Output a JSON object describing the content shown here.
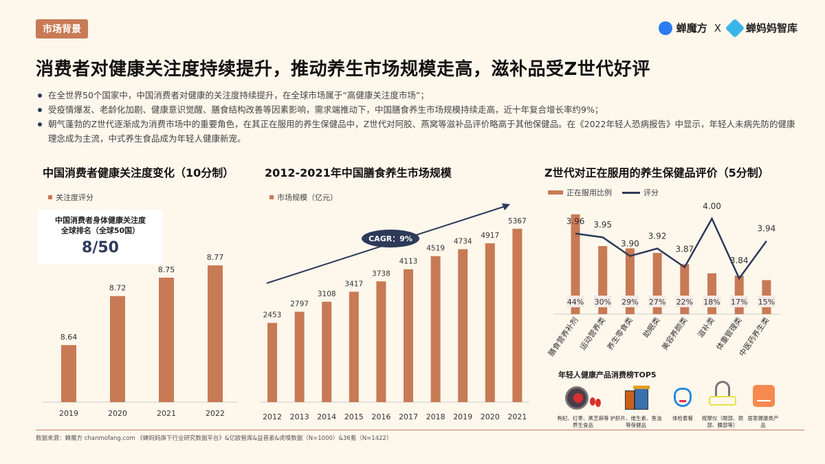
{
  "tag": "市场背景",
  "logos": {
    "left": "蝉魔方",
    "x": "X",
    "right": "蝉妈妈智库"
  },
  "title": "消费者对健康关注度持续提升，推动养生市场规模走高，滋补品受Z世代好评",
  "bullets": [
    "在全世界50个国家中，中国消费者对健康的关注度持续提升，在全球市场属于“高健康关注度市场”；",
    "受疫情爆发、老龄化加剧、健康意识觉醒、膳食结构改善等因素影响，需求端推动下，中国膳食养生市场规模持续走高，近十年复合增长率约9%；",
    "朝气蓬勃的Z世代逐渐成为消费市场中的重要角色，在其正在服用的养生保健品中，Z世代对阿胶、燕窝等滋补品评价略高于其他保健品。在《2022年轻人恐病报告》中显示，年轻人未病先防的健康理念成为主流，中式养生食品成为年轻人健康新宠。"
  ],
  "rank_box": {
    "line1": "中国消费者身体健康关注度",
    "line2": "全球排名（全球50国）",
    "value": "8/50"
  },
  "chart_data": [
    {
      "type": "bar",
      "title": "中国消费者健康关注度变化（10分制）",
      "categories": [
        "2019",
        "2020",
        "2021",
        "2022"
      ],
      "series": [
        {
          "name": "关注度评分",
          "values": [
            8.64,
            8.72,
            8.75,
            8.77
          ]
        }
      ],
      "grid": false,
      "legend": "top-left"
    },
    {
      "type": "bar",
      "title": "2012-2021年中国膳食养生市场规模",
      "categories": [
        "2012",
        "2013",
        "2014",
        "2015",
        "2016",
        "2017",
        "2018",
        "2019",
        "2020",
        "2021"
      ],
      "series": [
        {
          "name": "市场规模（亿元）",
          "values": [
            2453,
            2797,
            3108,
            3417,
            3738,
            4113,
            4519,
            4734,
            4917,
            5367
          ]
        }
      ],
      "annotation": "CAGR：9%",
      "grid": false,
      "legend": "top-left"
    },
    {
      "type": "bar+line",
      "title": "Z世代对正在服用的养生保健品评价（5分制）",
      "categories": [
        "膳食营养补剂",
        "运动营养类",
        "养生零食类",
        "助眠类",
        "美容养颜类",
        "滋补类",
        "体重管理类",
        "中医药养生类"
      ],
      "series": [
        {
          "name": "正在服用比例",
          "unit": "%",
          "values": [
            44,
            30,
            29,
            27,
            22,
            18,
            17,
            15
          ]
        },
        {
          "name": "评分",
          "values": [
            3.96,
            3.95,
            3.9,
            3.92,
            3.87,
            4.0,
            3.84,
            3.94
          ]
        }
      ],
      "grid": false,
      "legend": "top-left"
    }
  ],
  "top5": {
    "title": "年轻人健康产品消费榜TOP5",
    "items": [
      {
        "label": "枸杞、红枣、黑芝麻等养生食品",
        "icon": "goji-bowl-icon"
      },
      {
        "label": "护肝片、维生素、鱼油等保健品",
        "icon": "pill-box-icon"
      },
      {
        "label": "体检套餐",
        "icon": "stethoscope-icon"
      },
      {
        "label": "按摩仪（眼部、颈部、腰部等）",
        "icon": "eye-massager-icon"
      },
      {
        "label": "居家健康类产品",
        "icon": "test-kit-icon"
      }
    ]
  },
  "source": "数据来源：蝉魔方 chanmofang.com 《蝉妈妈旗下行业研究数据平台》&亿欧智库&益普索&虎嗅数据（N=1000）&36氪（N=1422）",
  "colors": {
    "bar": "#c87a55",
    "line": "#2e3a59",
    "background": "#fdf7ec"
  }
}
